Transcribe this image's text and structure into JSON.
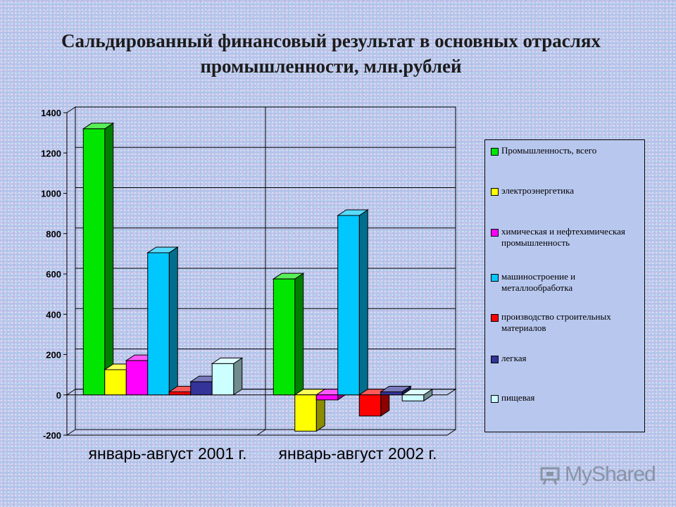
{
  "chart_data": {
    "type": "bar",
    "title": "Сальдированный финансовый результат в основных отраслях промышленности, млн.рублей",
    "categories": [
      "январь-август 2001 г.",
      "январь-август 2002 г."
    ],
    "series": [
      {
        "name": "Промышленность, всего",
        "values": [
          1320,
          575
        ],
        "color": "#00e600"
      },
      {
        "name": "электроэнергетика",
        "values": [
          125,
          -180
        ],
        "color": "#ffff00"
      },
      {
        "name": "химическая и нефтехимическая промышленность",
        "values": [
          170,
          -25
        ],
        "color": "#ff00ff"
      },
      {
        "name": "машиностроение и металлообработка",
        "values": [
          705,
          890
        ],
        "color": "#00c8ff"
      },
      {
        "name": "производство строительных материалов",
        "values": [
          15,
          -105
        ],
        "color": "#ff0000"
      },
      {
        "name": "легкая",
        "values": [
          65,
          15
        ],
        "color": "#333399"
      },
      {
        "name": "пищевая",
        "values": [
          155,
          -30
        ],
        "color": "#ccffff"
      }
    ],
    "yticks": [
      -200,
      0,
      200,
      400,
      600,
      800,
      1000,
      1200,
      1400
    ],
    "ylim": [
      -200,
      1400
    ],
    "grid": true,
    "legend": "right"
  },
  "watermark": "MyShared"
}
